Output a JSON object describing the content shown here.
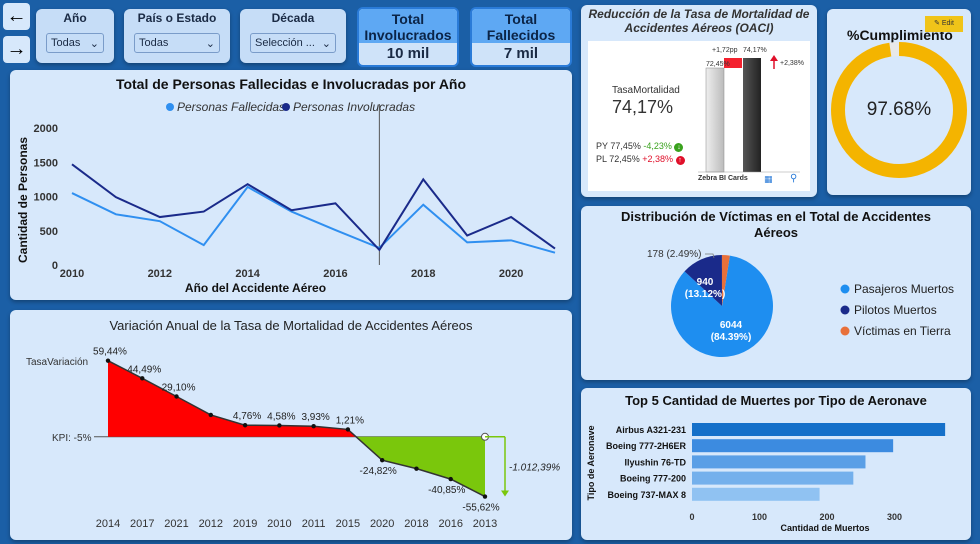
{
  "nav": {
    "back_label": "←",
    "forward_label": "→"
  },
  "filters": [
    {
      "label": "Año",
      "value": "Todas"
    },
    {
      "label": "País o Estado",
      "value": "Todas"
    },
    {
      "label": "Década",
      "value": "Selección ..."
    }
  ],
  "kpis": [
    {
      "title": "Total Involucrados",
      "value": "10 mil"
    },
    {
      "title": "Total Fallecidos",
      "value": "7 mil"
    }
  ],
  "reduccion": {
    "title": "Reducción de la Tasa de Mortalidad de Accidentes Aéreos (OACI)",
    "metric_label": "TasaMortalidad",
    "metric_value": "74,17%",
    "py_label": "PY",
    "py_value": "77,45%",
    "py_delta": "-4,23%",
    "pl_label": "PL",
    "pl_value": "72,45%",
    "pl_delta": "+2,38%",
    "bar_top_delta": "+1,72pp",
    "bar_left_value": "72,45%",
    "bar_right_value": "74,17%",
    "bar_side_delta": "+2,38%",
    "footer": "Zebra BI Cards"
  },
  "cumplimiento": {
    "title": "%Cumplimiento",
    "value": "97.68%",
    "fraction": 0.9768,
    "edit_label": "Edit"
  },
  "line_chart_meta": {
    "title": "Total de Personas Fallecidas e Involucradas por Año"
  },
  "variacion_meta": {
    "title": "Variación Anual de la Tasa de Mortalidad de Accidentes Aéreos"
  },
  "donut_meta": {
    "title": "Distribución de Víctimas en el Total de Accidentes Aéreos"
  },
  "bar_meta": {
    "title": "Top 5 Cantidad de Muertes por Tipo de Aeronave"
  },
  "chart_data": [
    {
      "type": "line",
      "xlabel": "Año del Accidente Aéreo",
      "ylabel": "Cantidad de Personas",
      "x": [
        2010,
        2011,
        2012,
        2013,
        2014,
        2015,
        2016,
        2017,
        2018,
        2019,
        2020,
        2021
      ],
      "series": [
        {
          "name": "Personas Fallecidas",
          "color": "#2f8ff0",
          "values": [
            1050,
            740,
            640,
            290,
            1140,
            780,
            510,
            250,
            880,
            330,
            360,
            180
          ]
        },
        {
          "name": "Personas Involucradas",
          "color": "#1a2a8a",
          "values": [
            1470,
            990,
            700,
            780,
            1180,
            800,
            900,
            220,
            1250,
            430,
            700,
            240
          ]
        }
      ],
      "ylim": [
        0,
        2000
      ],
      "yticks": [
        0,
        500,
        1000,
        1500,
        2000
      ],
      "xticks": [
        2010,
        2012,
        2014,
        2016,
        2018,
        2020
      ]
    },
    {
      "type": "area",
      "series_label": "TasaVariación",
      "kpi_label": "KPI: -5%",
      "kpi": -5,
      "categories": [
        "2014",
        "2017",
        "2021",
        "2012",
        "2019",
        "2010",
        "2011",
        "2015",
        "2020",
        "2018",
        "2016",
        "2013"
      ],
      "values": [
        59.44,
        44.49,
        29.1,
        13.5,
        4.76,
        4.58,
        3.93,
        1.21,
        -24.82,
        -32.0,
        -40.85,
        -55.62
      ],
      "labels": [
        "59,44%",
        "44,49%",
        "29,10%",
        "",
        "4,76%",
        "4,58%",
        "3,93%",
        "1,21%",
        "-24,82%",
        "",
        "-40,85%",
        "-55,62%"
      ],
      "variance_label": "-1.012,39%",
      "positive_color": "#ff0000",
      "negative_color": "#7ac70c"
    },
    {
      "type": "pie",
      "slices": [
        {
          "name": "Pasajeros Muertos",
          "value": 6044,
          "label": "6044",
          "pct": "(84.39%)",
          "color": "#1e8ef0"
        },
        {
          "name": "Pilotos Muertos",
          "value": 940,
          "label": "940",
          "pct": "(13.12%)",
          "color": "#1a2a8a"
        },
        {
          "name": "Víctimas en Tierra",
          "value": 178,
          "label": "178 (2.49%)",
          "pct": "",
          "color": "#e8703a"
        }
      ]
    },
    {
      "type": "bar",
      "orientation": "horizontal",
      "ylabel": "Tipo de Aeronave",
      "xlabel": "Cantidad de Muertos",
      "categories": [
        "Airbus A321-231",
        "Boeing 777-2H6ER",
        "Ilyushin 76-TD",
        "Boeing 777-200",
        "Boeing 737-MAX 8"
      ],
      "values": [
        375,
        298,
        257,
        239,
        189
      ],
      "colors": [
        "#1570c9",
        "#3c8be0",
        "#5a9fe6",
        "#74b0ec",
        "#90c2f2"
      ],
      "xlim": [
        0,
        400
      ],
      "xticks": [
        0,
        100,
        200,
        300
      ]
    }
  ]
}
